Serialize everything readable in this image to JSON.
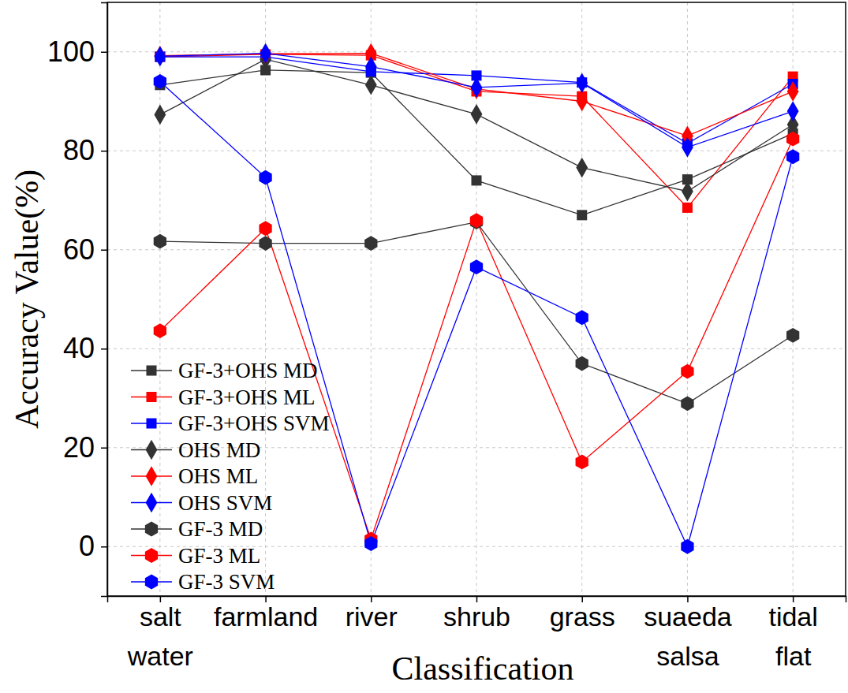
{
  "chart_data": {
    "type": "line",
    "x_label": "Classification",
    "y_label": "Accuracy Value(%)",
    "categories": [
      "salt water",
      "farmland",
      "river",
      "shrub",
      "grass",
      "suaeda salsa",
      "tidal flat"
    ],
    "ylim": [
      -10,
      110
    ],
    "yticks": [
      0,
      20,
      40,
      60,
      80,
      100
    ],
    "grid": true,
    "legend": "lower left",
    "series": [
      {
        "name": "GF-3+OHS MD",
        "color": "#333333",
        "marker": "square",
        "values": [
          93.3,
          96.3,
          95.8,
          74.0,
          67.0,
          74.2,
          83.5
        ]
      },
      {
        "name": "GF-3+OHS ML",
        "color": "#ff0000",
        "marker": "square",
        "values": [
          99.0,
          99.5,
          99.3,
          92.0,
          91.0,
          68.5,
          95.0
        ]
      },
      {
        "name": "GF-3+OHS SVM",
        "color": "#0000ff",
        "marker": "square",
        "values": [
          99.0,
          99.0,
          96.0,
          95.2,
          93.8,
          81.5,
          93.5
        ]
      },
      {
        "name": "OHS MD",
        "color": "#333333",
        "marker": "diamond",
        "values": [
          87.3,
          98.5,
          93.3,
          87.4,
          76.6,
          71.8,
          85.3
        ]
      },
      {
        "name": "OHS ML",
        "color": "#ff0000",
        "marker": "diamond",
        "values": [
          99.2,
          99.6,
          99.7,
          92.5,
          90.0,
          83.0,
          92.0
        ]
      },
      {
        "name": "OHS SVM",
        "color": "#0000ff",
        "marker": "diamond",
        "values": [
          99.1,
          99.7,
          97.0,
          92.8,
          93.7,
          80.7,
          88.0
        ]
      },
      {
        "name": "GF-3 MD",
        "color": "#333333",
        "marker": "hexagon",
        "values": [
          61.7,
          61.3,
          61.3,
          65.6,
          37.0,
          28.9,
          42.7
        ]
      },
      {
        "name": "GF-3 ML",
        "color": "#ff0000",
        "marker": "hexagon",
        "values": [
          43.6,
          64.3,
          1.5,
          65.9,
          17.1,
          35.4,
          82.4
        ]
      },
      {
        "name": "GF-3 SVM",
        "color": "#0000ff",
        "marker": "hexagon",
        "values": [
          94.0,
          74.6,
          0.6,
          56.5,
          46.3,
          0.0,
          78.8
        ]
      }
    ]
  }
}
